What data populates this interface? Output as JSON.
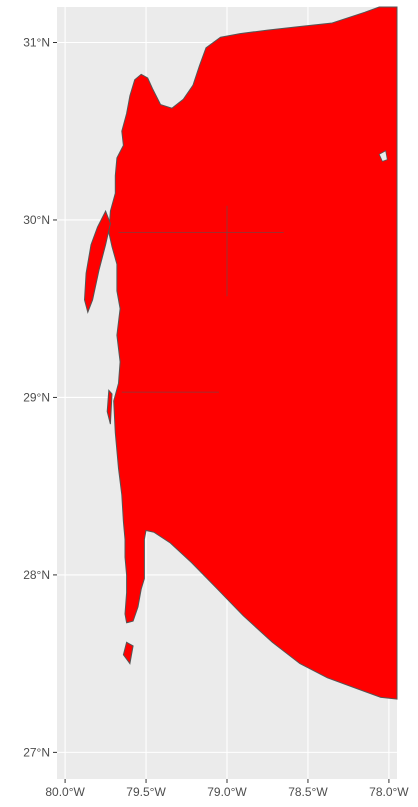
{
  "chart_data": {
    "type": "map",
    "projection": "lon-lat",
    "xlim": [
      -80.05,
      -77.95
    ],
    "ylim": [
      26.85,
      31.2
    ],
    "x_ticks": [
      {
        "value": -80.0,
        "label": "80.0°W"
      },
      {
        "value": -79.5,
        "label": "79.5°W"
      },
      {
        "value": -79.0,
        "label": "79.0°W"
      },
      {
        "value": -78.5,
        "label": "78.5°W"
      },
      {
        "value": -78.0,
        "label": "78.0°W"
      }
    ],
    "y_ticks": [
      {
        "value": 27,
        "label": "27°N"
      },
      {
        "value": 28,
        "label": "28°N"
      },
      {
        "value": 29,
        "label": "29°N"
      },
      {
        "value": 30,
        "label": "30°N"
      },
      {
        "value": 31,
        "label": "31°N"
      }
    ],
    "grid": true,
    "background_color": "#ebebeb",
    "grid_color": "#ffffff",
    "fill_color": "#ff0000",
    "outline_color": "#555555",
    "region_polygon": [
      [
        -79.04,
        31.03
      ],
      [
        -78.92,
        31.05
      ],
      [
        -78.75,
        31.07
      ],
      [
        -78.55,
        31.09
      ],
      [
        -78.35,
        31.11
      ],
      [
        -78.15,
        31.17
      ],
      [
        -78.06,
        31.2
      ],
      [
        -77.95,
        31.2
      ],
      [
        -77.95,
        27.3
      ],
      [
        -78.05,
        27.31
      ],
      [
        -78.2,
        27.36
      ],
      [
        -78.38,
        27.42
      ],
      [
        -78.55,
        27.5
      ],
      [
        -78.72,
        27.62
      ],
      [
        -78.9,
        27.77
      ],
      [
        -79.07,
        27.93
      ],
      [
        -79.22,
        28.07
      ],
      [
        -79.35,
        28.18
      ],
      [
        -79.45,
        28.24
      ],
      [
        -79.5,
        28.25
      ],
      [
        -79.51,
        28.2
      ],
      [
        -79.51,
        27.98
      ],
      [
        -79.53,
        27.92
      ],
      [
        -79.55,
        27.82
      ],
      [
        -79.58,
        27.74
      ],
      [
        -79.62,
        27.73
      ],
      [
        -79.63,
        27.78
      ],
      [
        -79.62,
        27.9
      ],
      [
        -79.62,
        28.0
      ],
      [
        -79.63,
        28.1
      ],
      [
        -79.63,
        28.2
      ],
      [
        -79.64,
        28.3
      ],
      [
        -79.65,
        28.45
      ],
      [
        -79.67,
        28.6
      ],
      [
        -79.69,
        28.8
      ],
      [
        -79.7,
        28.98
      ],
      [
        -79.67,
        29.08
      ],
      [
        -79.66,
        29.2
      ],
      [
        -79.68,
        29.35
      ],
      [
        -79.66,
        29.5
      ],
      [
        -79.68,
        29.6
      ],
      [
        -79.68,
        29.75
      ],
      [
        -79.71,
        29.85
      ],
      [
        -79.73,
        29.93
      ],
      [
        -79.72,
        30.05
      ],
      [
        -79.69,
        30.15
      ],
      [
        -79.69,
        30.25
      ],
      [
        -79.68,
        30.35
      ],
      [
        -79.64,
        30.42
      ],
      [
        -79.65,
        30.5
      ],
      [
        -79.62,
        30.6
      ],
      [
        -79.6,
        30.7
      ],
      [
        -79.57,
        30.79
      ],
      [
        -79.53,
        30.82
      ],
      [
        -79.49,
        30.8
      ],
      [
        -79.46,
        30.74
      ],
      [
        -79.41,
        30.65
      ],
      [
        -79.34,
        30.63
      ],
      [
        -79.27,
        30.68
      ],
      [
        -79.21,
        30.76
      ],
      [
        -79.17,
        30.87
      ],
      [
        -79.13,
        30.97
      ]
    ],
    "island_polygons": [
      [
        [
          -79.88,
          29.55
        ],
        [
          -79.87,
          29.7
        ],
        [
          -79.84,
          29.86
        ],
        [
          -79.8,
          29.96
        ],
        [
          -79.75,
          30.05
        ],
        [
          -79.72,
          29.98
        ],
        [
          -79.75,
          29.86
        ],
        [
          -79.79,
          29.72
        ],
        [
          -79.83,
          29.55
        ],
        [
          -79.86,
          29.48
        ]
      ],
      [
        [
          -79.73,
          29.04
        ],
        [
          -79.74,
          28.92
        ],
        [
          -79.72,
          28.85
        ],
        [
          -79.71,
          29.02
        ]
      ],
      [
        [
          -79.62,
          27.62
        ],
        [
          -79.64,
          27.55
        ],
        [
          -79.6,
          27.5
        ],
        [
          -79.58,
          27.6
        ]
      ]
    ],
    "hole_polygons": [
      [
        [
          -78.06,
          30.37
        ],
        [
          -78.04,
          30.33
        ],
        [
          -78.01,
          30.34
        ],
        [
          -78.02,
          30.39
        ]
      ]
    ],
    "artifact_lines": [
      [
        [
          -79.67,
          29.93
        ],
        [
          -78.65,
          29.93
        ]
      ],
      [
        [
          -79.0,
          30.08
        ],
        [
          -79.0,
          29.57
        ]
      ],
      [
        [
          -79.65,
          29.03
        ],
        [
          -79.05,
          29.03
        ]
      ]
    ]
  }
}
